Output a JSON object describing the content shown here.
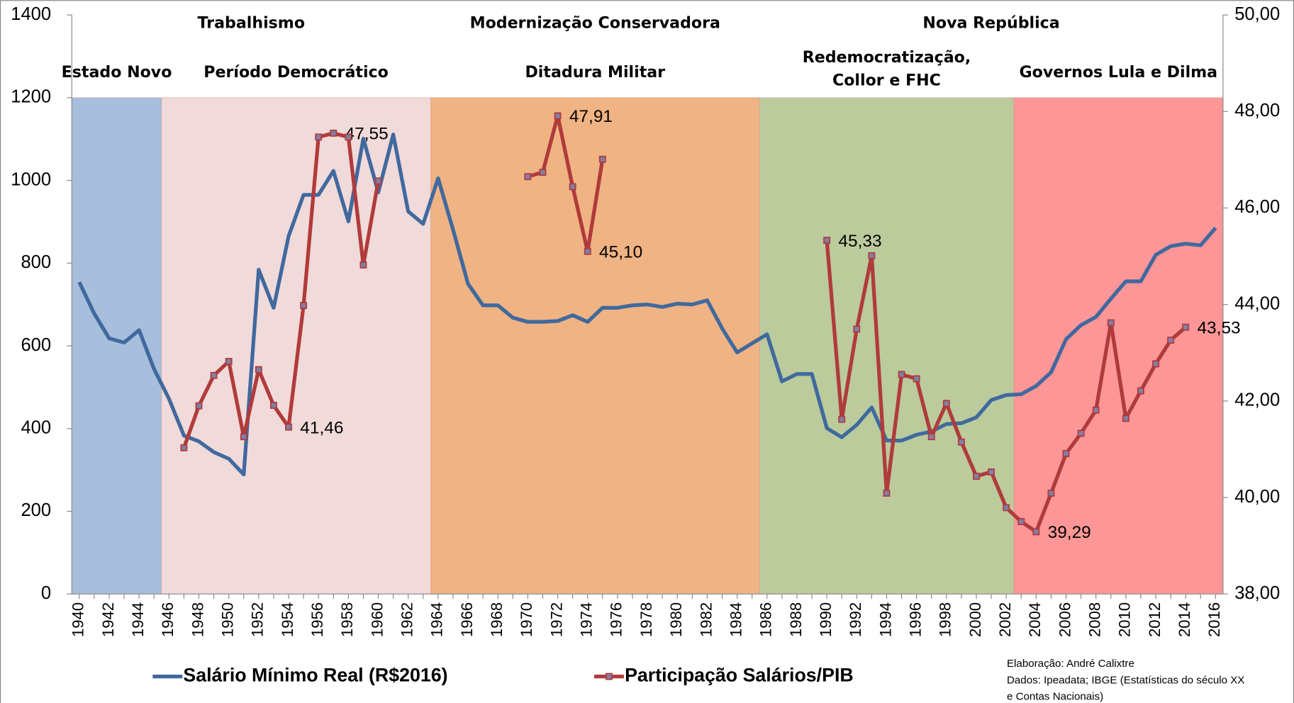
{
  "chart_data": {
    "type": "line",
    "x": [
      1940,
      1941,
      1942,
      1943,
      1944,
      1945,
      1946,
      1947,
      1948,
      1949,
      1950,
      1951,
      1952,
      1953,
      1954,
      1955,
      1956,
      1957,
      1958,
      1959,
      1960,
      1961,
      1962,
      1963,
      1964,
      1965,
      1966,
      1967,
      1968,
      1969,
      1970,
      1971,
      1972,
      1973,
      1974,
      1975,
      1976,
      1977,
      1978,
      1979,
      1980,
      1981,
      1982,
      1983,
      1984,
      1985,
      1986,
      1987,
      1988,
      1989,
      1990,
      1991,
      1992,
      1993,
      1994,
      1995,
      1996,
      1997,
      1998,
      1999,
      2000,
      2001,
      2002,
      2003,
      2004,
      2005,
      2006,
      2007,
      2008,
      2009,
      2010,
      2011,
      2012,
      2013,
      2014,
      2015,
      2016
    ],
    "xlim": [
      1939.5,
      2016.5
    ],
    "xticks": [
      1940,
      1942,
      1944,
      1946,
      1948,
      1950,
      1952,
      1954,
      1956,
      1958,
      1960,
      1962,
      1964,
      1966,
      1968,
      1970,
      1972,
      1974,
      1976,
      1978,
      1980,
      1982,
      1984,
      1986,
      1988,
      1990,
      1992,
      1994,
      1996,
      1998,
      2000,
      2002,
      2004,
      2006,
      2008,
      2010,
      2012,
      2014,
      2016
    ],
    "ylim": [
      0,
      1400
    ],
    "yticks": [
      0,
      200,
      400,
      600,
      800,
      1000,
      1200,
      1400
    ],
    "y2lim": [
      38,
      50
    ],
    "y2ticks": [
      {
        "value": 38,
        "label": "38,00"
      },
      {
        "value": 40,
        "label": "40,00"
      },
      {
        "value": 42,
        "label": "42,00"
      },
      {
        "value": 44,
        "label": "44,00"
      },
      {
        "value": 46,
        "label": "46,00"
      },
      {
        "value": 48,
        "label": "48,00"
      },
      {
        "value": 50,
        "label": "50,00"
      }
    ],
    "series": [
      {
        "name": "Salário Mínimo Real (R$2016)",
        "color": "#40699e",
        "markers": false,
        "values": [
          754,
          678,
          618,
          608,
          638,
          544,
          472,
          383,
          369,
          343,
          327,
          289,
          784,
          692,
          865,
          965,
          965,
          1023,
          901,
          1101,
          971,
          1111,
          925,
          895,
          1005,
          881,
          750,
          698,
          698,
          668,
          658,
          658,
          660,
          674,
          658,
          692,
          692,
          698,
          700,
          694,
          702,
          700,
          710,
          642,
          584,
          606,
          628,
          514,
          532,
          532,
          401,
          379,
          409,
          451,
          371,
          371,
          385,
          393,
          411,
          413,
          427,
          469,
          481,
          483,
          503,
          536,
          616,
          650,
          670,
          714,
          756,
          756,
          820,
          841,
          847,
          843,
          885
        ]
      },
      {
        "name": "Participação Salários/PIB",
        "color": "#b03b3b",
        "markers": true,
        "axis": "y2",
        "values": [
          null,
          null,
          null,
          null,
          null,
          null,
          null,
          41.03,
          41.9,
          42.53,
          42.82,
          41.26,
          42.65,
          41.91,
          41.46,
          43.98,
          47.47,
          47.55,
          47.47,
          44.82,
          46.56,
          null,
          null,
          null,
          null,
          null,
          null,
          null,
          null,
          null,
          46.65,
          46.74,
          47.91,
          46.44,
          45.1,
          47.01,
          null,
          null,
          null,
          null,
          null,
          null,
          null,
          null,
          null,
          null,
          null,
          null,
          null,
          null,
          45.33,
          41.62,
          43.49,
          45.01,
          40.09,
          42.55,
          42.46,
          41.26,
          41.95,
          41.15,
          40.44,
          40.53,
          39.79,
          39.5,
          39.29,
          40.09,
          40.91,
          41.33,
          41.81,
          43.62,
          41.64,
          42.21,
          42.77,
          43.26,
          43.53,
          null,
          null
        ],
        "value_labels": [
          null,
          null,
          null,
          null,
          null,
          null,
          null,
          null,
          null,
          null,
          null,
          null,
          null,
          null,
          "41,46",
          null,
          null,
          "47,55",
          null,
          null,
          null,
          null,
          null,
          null,
          null,
          null,
          null,
          null,
          null,
          null,
          null,
          null,
          "47,91",
          null,
          "45,10",
          null,
          null,
          null,
          null,
          null,
          null,
          null,
          null,
          null,
          null,
          null,
          null,
          null,
          null,
          null,
          "45,33",
          null,
          null,
          null,
          null,
          null,
          null,
          null,
          null,
          null,
          null,
          null,
          null,
          null,
          "39,29",
          null,
          null,
          null,
          null,
          null,
          null,
          null,
          null,
          null,
          "43,53",
          null,
          null
        ]
      }
    ],
    "periods": [
      {
        "label": "Estado Novo",
        "start": 1939.5,
        "end": 1945.5,
        "color": "#a7bedc"
      },
      {
        "label": "Período Democrático",
        "start": 1945.5,
        "end": 1963.5,
        "color": "#f1dada"
      },
      {
        "label": "Ditadura Militar",
        "start": 1963.5,
        "end": 1985.5,
        "color": "#f0b383"
      },
      {
        "label": [
          "Redemocratização,",
          "Collor e FHC"
        ],
        "start": 1985.5,
        "end": 2002.5,
        "color": "#bccb9c"
      },
      {
        "label": "Governos Lula e Dilma",
        "start": 2002.5,
        "end": 2016.5,
        "color": "#fd9696"
      }
    ],
    "eras": [
      {
        "label": "Trabalhismo",
        "start": 1939.5,
        "end": 1963.5
      },
      {
        "label": "Modernização Conservadora",
        "start": 1963.5,
        "end": 1985.5
      },
      {
        "label": "Nova República",
        "start": 1985.5,
        "end": 2016.5
      }
    ],
    "notes": [
      "Elaboração: André Calixtre",
      "Dados: Ipeadata; IBGE (Estatísticas do século XX",
      "e Contas Nacionais)"
    ]
  }
}
